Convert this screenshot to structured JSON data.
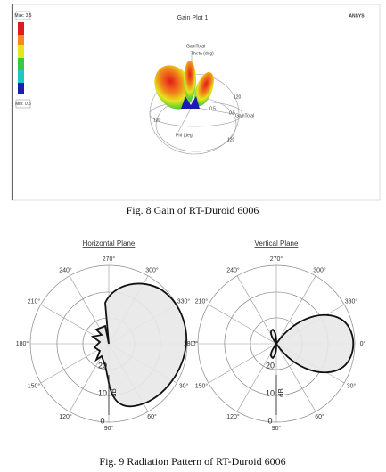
{
  "figure_8": {
    "plot_title": "Gain Plot 1",
    "brand": "ANSYS",
    "legend_max": "Max: 3.5",
    "legend_min": "Min: 0.5",
    "axis_labels": [
      "GainTotal",
      "Theta (deg)",
      "Phi (deg)",
      "GainTotal"
    ],
    "ring_labels": [
      "120",
      "0.5",
      "0.5",
      "120",
      "120"
    ],
    "caption": "Fig. 8 Gain of RT-Duroid 6006"
  },
  "figure_9": {
    "plots": [
      {
        "title": "Horizontal Plane",
        "angle_labels": [
          "0°",
          "30°",
          "60°",
          "90°",
          "120°",
          "150°",
          "180°",
          "210°",
          "240°",
          "270°",
          "300°",
          "330°"
        ],
        "radial_labels": [
          "20",
          "10",
          "0"
        ],
        "unit": "dB"
      },
      {
        "title": "Vertical Plane",
        "angle_labels": [
          "0°",
          "30°",
          "60°",
          "90°",
          "120°",
          "150°",
          "180°",
          "210°",
          "240°",
          "270°",
          "300°",
          "330°"
        ],
        "radial_labels": [
          "20",
          "10",
          "0"
        ],
        "unit": "dB"
      }
    ],
    "caption": "Fig. 9 Radiation Pattern of RT-Duroid 6006"
  }
}
